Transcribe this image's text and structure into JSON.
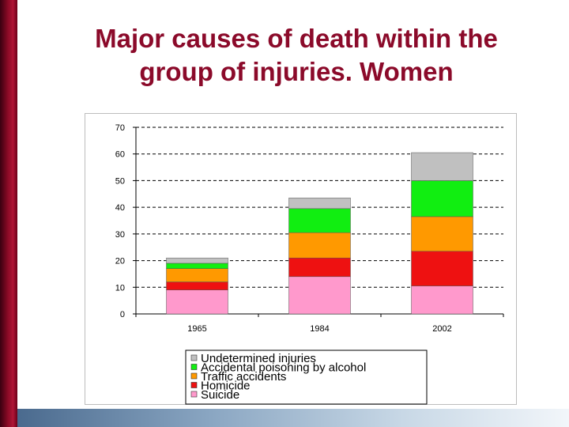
{
  "slide": {
    "title_line1": "Major causes of death within the",
    "title_line2": "group of injuries. Women",
    "accent_color": "#8b0a2a"
  },
  "chart_data": {
    "type": "bar",
    "stacked": true,
    "categories": [
      "1965",
      "1984",
      "2002"
    ],
    "series": [
      {
        "name": "Suicide",
        "color": "#ff99cc",
        "values": [
          9,
          14,
          10.5
        ]
      },
      {
        "name": "Homicide",
        "color": "#ee1111",
        "values": [
          3,
          7,
          13
        ]
      },
      {
        "name": "Traffic accidents",
        "color": "#ff9900",
        "values": [
          5,
          9.5,
          13
        ]
      },
      {
        "name": "Accidental poisoning by alcohol",
        "color": "#11ee11",
        "values": [
          2,
          9,
          13.5
        ]
      },
      {
        "name": "Undetermined injuries",
        "color": "#c0c0c0",
        "values": [
          2,
          4,
          10.5
        ]
      }
    ],
    "ylim": [
      0,
      70
    ],
    "yticks": [
      0,
      10,
      20,
      30,
      40,
      50,
      60,
      70
    ],
    "grid": true,
    "legend_position": "bottom",
    "xlabel": "",
    "ylabel": ""
  }
}
